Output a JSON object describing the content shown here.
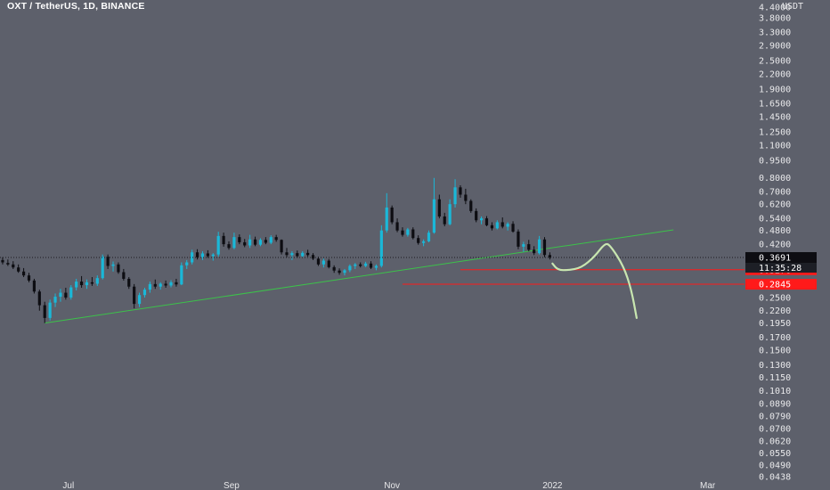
{
  "header": {
    "title": "OXT / TetherUS, 1D, BINANCE"
  },
  "currency_label": "USDT",
  "colors": {
    "background": "#5d606b",
    "up": "#1ab8d8",
    "down": "#0d0d12",
    "trendline": "#3cc24a",
    "level": "#ff1a1a",
    "drawing": "#c8e6b0",
    "price_label_bg": "#0d0d12"
  },
  "chart_data": {
    "type": "candlestick",
    "title": "OXT / TetherUS, 1D, BINANCE",
    "y_scale": "log",
    "ylim": [
      0.0438,
      4.4
    ],
    "xlim": [
      "2021-06-05",
      "2022-03-15"
    ],
    "y_ticks": [
      "4.4000",
      "3.8000",
      "3.3000",
      "2.9000",
      "2.5000",
      "2.2000",
      "1.9000",
      "1.6500",
      "1.4500",
      "1.2500",
      "1.1000",
      "0.9500",
      "0.8000",
      "0.7000",
      "0.6200",
      "0.5400",
      "0.4800",
      "0.4200",
      "0.3691",
      "0.3276",
      "0.2845",
      "0.2500",
      "0.2200",
      "0.1950",
      "0.1700",
      "0.1500",
      "0.1300",
      "0.1150",
      "0.1010",
      "0.0890",
      "0.0790",
      "0.0700",
      "0.0620",
      "0.0550",
      "0.0490",
      "0.0438"
    ],
    "x_ticks": [
      {
        "label": "Jul",
        "date": "2021-07-01"
      },
      {
        "label": "Sep",
        "date": "2021-09-01"
      },
      {
        "label": "Nov",
        "date": "2021-11-01"
      },
      {
        "label": "2022",
        "date": "2022-01-01"
      },
      {
        "label": "Mar",
        "date": "2022-03-01"
      }
    ],
    "candles": [
      {
        "d": "2021-06-06",
        "o": 0.36,
        "h": 0.37,
        "l": 0.345,
        "c": 0.352
      },
      {
        "d": "2021-06-08",
        "o": 0.35,
        "h": 0.362,
        "l": 0.34,
        "c": 0.345
      },
      {
        "d": "2021-06-10",
        "o": 0.345,
        "h": 0.356,
        "l": 0.33,
        "c": 0.335
      },
      {
        "d": "2021-06-12",
        "o": 0.335,
        "h": 0.345,
        "l": 0.318,
        "c": 0.322
      },
      {
        "d": "2021-06-14",
        "o": 0.322,
        "h": 0.333,
        "l": 0.305,
        "c": 0.31
      },
      {
        "d": "2021-06-16",
        "o": 0.31,
        "h": 0.318,
        "l": 0.29,
        "c": 0.295
      },
      {
        "d": "2021-06-18",
        "o": 0.295,
        "h": 0.3,
        "l": 0.26,
        "c": 0.265
      },
      {
        "d": "2021-06-20",
        "o": 0.265,
        "h": 0.27,
        "l": 0.22,
        "c": 0.232
      },
      {
        "d": "2021-06-22",
        "o": 0.232,
        "h": 0.24,
        "l": 0.195,
        "c": 0.205
      },
      {
        "d": "2021-06-24",
        "o": 0.205,
        "h": 0.245,
        "l": 0.2,
        "c": 0.238
      },
      {
        "d": "2021-06-26",
        "o": 0.238,
        "h": 0.26,
        "l": 0.228,
        "c": 0.252
      },
      {
        "d": "2021-06-28",
        "o": 0.252,
        "h": 0.272,
        "l": 0.24,
        "c": 0.262
      },
      {
        "d": "2021-06-30",
        "o": 0.262,
        "h": 0.275,
        "l": 0.245,
        "c": 0.25
      },
      {
        "d": "2021-07-02",
        "o": 0.25,
        "h": 0.282,
        "l": 0.245,
        "c": 0.276
      },
      {
        "d": "2021-07-04",
        "o": 0.276,
        "h": 0.3,
        "l": 0.268,
        "c": 0.292
      },
      {
        "d": "2021-07-06",
        "o": 0.292,
        "h": 0.308,
        "l": 0.275,
        "c": 0.282
      },
      {
        "d": "2021-07-08",
        "o": 0.282,
        "h": 0.298,
        "l": 0.272,
        "c": 0.29
      },
      {
        "d": "2021-07-10",
        "o": 0.29,
        "h": 0.305,
        "l": 0.28,
        "c": 0.286
      },
      {
        "d": "2021-07-12",
        "o": 0.286,
        "h": 0.31,
        "l": 0.28,
        "c": 0.302
      },
      {
        "d": "2021-07-14",
        "o": 0.302,
        "h": 0.38,
        "l": 0.298,
        "c": 0.372
      },
      {
        "d": "2021-07-16",
        "o": 0.372,
        "h": 0.38,
        "l": 0.33,
        "c": 0.34
      },
      {
        "d": "2021-07-18",
        "o": 0.34,
        "h": 0.355,
        "l": 0.322,
        "c": 0.345
      },
      {
        "d": "2021-07-20",
        "o": 0.345,
        "h": 0.352,
        "l": 0.315,
        "c": 0.32
      },
      {
        "d": "2021-07-22",
        "o": 0.32,
        "h": 0.33,
        "l": 0.295,
        "c": 0.3
      },
      {
        "d": "2021-07-24",
        "o": 0.3,
        "h": 0.305,
        "l": 0.272,
        "c": 0.278
      },
      {
        "d": "2021-07-26",
        "o": 0.278,
        "h": 0.285,
        "l": 0.225,
        "c": 0.235
      },
      {
        "d": "2021-07-28",
        "o": 0.235,
        "h": 0.262,
        "l": 0.228,
        "c": 0.256
      },
      {
        "d": "2021-07-30",
        "o": 0.256,
        "h": 0.275,
        "l": 0.25,
        "c": 0.27
      },
      {
        "d": "2021-08-01",
        "o": 0.27,
        "h": 0.292,
        "l": 0.262,
        "c": 0.285
      },
      {
        "d": "2021-08-03",
        "o": 0.285,
        "h": 0.298,
        "l": 0.272,
        "c": 0.278
      },
      {
        "d": "2021-08-05",
        "o": 0.278,
        "h": 0.29,
        "l": 0.27,
        "c": 0.286
      },
      {
        "d": "2021-08-07",
        "o": 0.286,
        "h": 0.295,
        "l": 0.275,
        "c": 0.281
      },
      {
        "d": "2021-08-09",
        "o": 0.281,
        "h": 0.296,
        "l": 0.276,
        "c": 0.29
      },
      {
        "d": "2021-08-11",
        "o": 0.29,
        "h": 0.3,
        "l": 0.278,
        "c": 0.284
      },
      {
        "d": "2021-08-13",
        "o": 0.284,
        "h": 0.352,
        "l": 0.282,
        "c": 0.342
      },
      {
        "d": "2021-08-15",
        "o": 0.342,
        "h": 0.36,
        "l": 0.33,
        "c": 0.352
      },
      {
        "d": "2021-08-17",
        "o": 0.352,
        "h": 0.398,
        "l": 0.345,
        "c": 0.388
      },
      {
        "d": "2021-08-19",
        "o": 0.388,
        "h": 0.4,
        "l": 0.362,
        "c": 0.37
      },
      {
        "d": "2021-08-21",
        "o": 0.37,
        "h": 0.392,
        "l": 0.36,
        "c": 0.384
      },
      {
        "d": "2021-08-23",
        "o": 0.384,
        "h": 0.396,
        "l": 0.368,
        "c": 0.374
      },
      {
        "d": "2021-08-25",
        "o": 0.374,
        "h": 0.385,
        "l": 0.358,
        "c": 0.38
      },
      {
        "d": "2021-08-27",
        "o": 0.38,
        "h": 0.474,
        "l": 0.372,
        "c": 0.455
      },
      {
        "d": "2021-08-29",
        "o": 0.455,
        "h": 0.47,
        "l": 0.41,
        "c": 0.42
      },
      {
        "d": "2021-08-31",
        "o": 0.42,
        "h": 0.432,
        "l": 0.398,
        "c": 0.405
      },
      {
        "d": "2021-09-02",
        "o": 0.405,
        "h": 0.47,
        "l": 0.4,
        "c": 0.45
      },
      {
        "d": "2021-09-04",
        "o": 0.45,
        "h": 0.462,
        "l": 0.42,
        "c": 0.428
      },
      {
        "d": "2021-09-06",
        "o": 0.428,
        "h": 0.442,
        "l": 0.408,
        "c": 0.415
      },
      {
        "d": "2021-09-08",
        "o": 0.415,
        "h": 0.46,
        "l": 0.405,
        "c": 0.44
      },
      {
        "d": "2021-09-10",
        "o": 0.44,
        "h": 0.452,
        "l": 0.412,
        "c": 0.418
      },
      {
        "d": "2021-09-12",
        "o": 0.418,
        "h": 0.445,
        "l": 0.412,
        "c": 0.438
      },
      {
        "d": "2021-09-14",
        "o": 0.438,
        "h": 0.45,
        "l": 0.42,
        "c": 0.426
      },
      {
        "d": "2021-09-16",
        "o": 0.426,
        "h": 0.458,
        "l": 0.42,
        "c": 0.45
      },
      {
        "d": "2021-09-18",
        "o": 0.45,
        "h": 0.46,
        "l": 0.43,
        "c": 0.438
      },
      {
        "d": "2021-09-20",
        "o": 0.438,
        "h": 0.44,
        "l": 0.38,
        "c": 0.388
      },
      {
        "d": "2021-09-22",
        "o": 0.388,
        "h": 0.405,
        "l": 0.37,
        "c": 0.378
      },
      {
        "d": "2021-09-24",
        "o": 0.378,
        "h": 0.392,
        "l": 0.36,
        "c": 0.385
      },
      {
        "d": "2021-09-26",
        "o": 0.385,
        "h": 0.395,
        "l": 0.368,
        "c": 0.374
      },
      {
        "d": "2021-09-28",
        "o": 0.374,
        "h": 0.392,
        "l": 0.368,
        "c": 0.386
      },
      {
        "d": "2021-09-30",
        "o": 0.386,
        "h": 0.398,
        "l": 0.372,
        "c": 0.378
      },
      {
        "d": "2021-10-02",
        "o": 0.378,
        "h": 0.385,
        "l": 0.36,
        "c": 0.365
      },
      {
        "d": "2021-10-04",
        "o": 0.365,
        "h": 0.372,
        "l": 0.34,
        "c": 0.345
      },
      {
        "d": "2021-10-06",
        "o": 0.345,
        "h": 0.365,
        "l": 0.335,
        "c": 0.358
      },
      {
        "d": "2021-10-08",
        "o": 0.358,
        "h": 0.364,
        "l": 0.332,
        "c": 0.336
      },
      {
        "d": "2021-10-10",
        "o": 0.336,
        "h": 0.342,
        "l": 0.318,
        "c": 0.325
      },
      {
        "d": "2021-10-12",
        "o": 0.325,
        "h": 0.332,
        "l": 0.312,
        "c": 0.318
      },
      {
        "d": "2021-10-14",
        "o": 0.318,
        "h": 0.33,
        "l": 0.31,
        "c": 0.326
      },
      {
        "d": "2021-10-16",
        "o": 0.326,
        "h": 0.345,
        "l": 0.32,
        "c": 0.34
      },
      {
        "d": "2021-10-18",
        "o": 0.34,
        "h": 0.35,
        "l": 0.33,
        "c": 0.345
      },
      {
        "d": "2021-10-20",
        "o": 0.345,
        "h": 0.352,
        "l": 0.335,
        "c": 0.34
      },
      {
        "d": "2021-10-22",
        "o": 0.34,
        "h": 0.354,
        "l": 0.336,
        "c": 0.348
      },
      {
        "d": "2021-10-24",
        "o": 0.348,
        "h": 0.356,
        "l": 0.33,
        "c": 0.334
      },
      {
        "d": "2021-10-26",
        "o": 0.334,
        "h": 0.345,
        "l": 0.326,
        "c": 0.34
      },
      {
        "d": "2021-10-28",
        "o": 0.34,
        "h": 0.505,
        "l": 0.335,
        "c": 0.48
      },
      {
        "d": "2021-10-30",
        "o": 0.48,
        "h": 0.69,
        "l": 0.47,
        "c": 0.6
      },
      {
        "d": "2021-11-01",
        "o": 0.6,
        "h": 0.612,
        "l": 0.51,
        "c": 0.52
      },
      {
        "d": "2021-11-03",
        "o": 0.52,
        "h": 0.54,
        "l": 0.472,
        "c": 0.48
      },
      {
        "d": "2021-11-05",
        "o": 0.48,
        "h": 0.495,
        "l": 0.452,
        "c": 0.46
      },
      {
        "d": "2021-11-07",
        "o": 0.46,
        "h": 0.492,
        "l": 0.452,
        "c": 0.485
      },
      {
        "d": "2021-11-09",
        "o": 0.485,
        "h": 0.495,
        "l": 0.44,
        "c": 0.446
      },
      {
        "d": "2021-11-11",
        "o": 0.446,
        "h": 0.458,
        "l": 0.418,
        "c": 0.425
      },
      {
        "d": "2021-11-13",
        "o": 0.425,
        "h": 0.44,
        "l": 0.412,
        "c": 0.432
      },
      {
        "d": "2021-11-15",
        "o": 0.432,
        "h": 0.48,
        "l": 0.428,
        "c": 0.47
      },
      {
        "d": "2021-11-17",
        "o": 0.47,
        "h": 0.8,
        "l": 0.465,
        "c": 0.65
      },
      {
        "d": "2021-11-19",
        "o": 0.65,
        "h": 0.68,
        "l": 0.54,
        "c": 0.55
      },
      {
        "d": "2021-11-21",
        "o": 0.55,
        "h": 0.57,
        "l": 0.5,
        "c": 0.51
      },
      {
        "d": "2021-11-23",
        "o": 0.51,
        "h": 0.65,
        "l": 0.505,
        "c": 0.62
      },
      {
        "d": "2021-11-25",
        "o": 0.62,
        "h": 0.79,
        "l": 0.6,
        "c": 0.73
      },
      {
        "d": "2021-11-27",
        "o": 0.73,
        "h": 0.745,
        "l": 0.66,
        "c": 0.68
      },
      {
        "d": "2021-11-29",
        "o": 0.68,
        "h": 0.72,
        "l": 0.62,
        "c": 0.64
      },
      {
        "d": "2021-12-01",
        "o": 0.64,
        "h": 0.65,
        "l": 0.57,
        "c": 0.58
      },
      {
        "d": "2021-12-03",
        "o": 0.58,
        "h": 0.595,
        "l": 0.52,
        "c": 0.53
      },
      {
        "d": "2021-12-05",
        "o": 0.53,
        "h": 0.55,
        "l": 0.51,
        "c": 0.54
      },
      {
        "d": "2021-12-07",
        "o": 0.54,
        "h": 0.552,
        "l": 0.5,
        "c": 0.505
      },
      {
        "d": "2021-12-09",
        "o": 0.505,
        "h": 0.52,
        "l": 0.48,
        "c": 0.49
      },
      {
        "d": "2021-12-11",
        "o": 0.49,
        "h": 0.53,
        "l": 0.485,
        "c": 0.52
      },
      {
        "d": "2021-12-13",
        "o": 0.52,
        "h": 0.545,
        "l": 0.49,
        "c": 0.498
      },
      {
        "d": "2021-12-15",
        "o": 0.498,
        "h": 0.52,
        "l": 0.48,
        "c": 0.512
      },
      {
        "d": "2021-12-17",
        "o": 0.512,
        "h": 0.525,
        "l": 0.47,
        "c": 0.475
      },
      {
        "d": "2021-12-19",
        "o": 0.475,
        "h": 0.485,
        "l": 0.4,
        "c": 0.41
      },
      {
        "d": "2021-12-21",
        "o": 0.41,
        "h": 0.43,
        "l": 0.39,
        "c": 0.42
      },
      {
        "d": "2021-12-23",
        "o": 0.42,
        "h": 0.438,
        "l": 0.392,
        "c": 0.398
      },
      {
        "d": "2021-12-25",
        "o": 0.398,
        "h": 0.412,
        "l": 0.378,
        "c": 0.385
      },
      {
        "d": "2021-12-27",
        "o": 0.385,
        "h": 0.455,
        "l": 0.38,
        "c": 0.44
      },
      {
        "d": "2021-12-29",
        "o": 0.44,
        "h": 0.45,
        "l": 0.37,
        "c": 0.378
      },
      {
        "d": "2021-12-31",
        "o": 0.378,
        "h": 0.388,
        "l": 0.362,
        "c": 0.369
      }
    ],
    "current_price": {
      "value": "0.3691",
      "countdown": "11:35:28"
    },
    "horizontal_levels": [
      {
        "value": "0.3276",
        "price": 0.3276,
        "start_date": "2021-11-27"
      },
      {
        "value": "0.2845",
        "price": 0.2845,
        "start_date": "2021-11-05"
      }
    ],
    "trendline": {
      "start": {
        "date": "2021-06-22",
        "price": 0.195
      },
      "end": {
        "date": "2022-02-16",
        "price": 0.483
      }
    },
    "projection_path": [
      {
        "date": "2022-01-01",
        "price": 0.348
      },
      {
        "date": "2022-01-03",
        "price": 0.327
      },
      {
        "date": "2022-01-07",
        "price": 0.326
      },
      {
        "date": "2022-01-12",
        "price": 0.334
      },
      {
        "date": "2022-01-17",
        "price": 0.372
      },
      {
        "date": "2022-01-21",
        "price": 0.425
      },
      {
        "date": "2022-01-23",
        "price": 0.415
      },
      {
        "date": "2022-01-28",
        "price": 0.34
      },
      {
        "date": "2022-01-31",
        "price": 0.27
      },
      {
        "date": "2022-02-02",
        "price": 0.205
      }
    ]
  }
}
